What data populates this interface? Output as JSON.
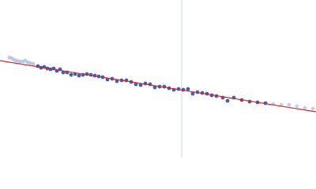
{
  "chart_data": {
    "type": "scatter",
    "xlim": [
      0,
      400
    ],
    "ylim": [
      0,
      200
    ],
    "vline": 230,
    "vline_color": "#c8d4e8",
    "series": [
      {
        "color": "#b9c8e4",
        "x": [
          12,
          15,
          18,
          21,
          25,
          29,
          32,
          35,
          38,
          42
        ],
        "values": [
          127,
          126,
          124,
          123,
          122,
          122,
          123,
          121,
          120,
          119
        ]
      },
      {
        "color": "#3d63b0",
        "x": [
          48,
          52,
          56,
          60,
          64,
          68,
          72,
          76,
          80,
          85,
          90,
          95,
          100,
          105,
          110,
          115,
          120,
          125,
          130,
          136,
          142,
          148,
          154,
          160,
          166,
          172,
          178,
          184,
          190,
          196,
          202,
          208,
          214,
          220,
          226,
          232,
          238,
          244,
          250,
          256,
          262,
          268,
          274,
          282,
          288,
          296,
          306,
          316,
          326,
          336
        ],
        "values": [
          116,
          114,
          115,
          113,
          112,
          113,
          110,
          112,
          108,
          108,
          105,
          106,
          104,
          105,
          106,
          105,
          104,
          103,
          102,
          99,
          100,
          97,
          98,
          98,
          96,
          93,
          92,
          94,
          93,
          89,
          90,
          90,
          88,
          86,
          87,
          86,
          87,
          81,
          83,
          82,
          81,
          79,
          78,
          76,
          72,
          76,
          73,
          71,
          70,
          69
        ]
      },
      {
        "color": "#c4d0e6",
        "x": [
          346,
          356,
          366,
          376,
          386,
          396
        ],
        "values": [
          68,
          67,
          67,
          65,
          63,
          62
        ]
      }
    ],
    "fit": {
      "color": "#d9232e",
      "x": [
        0,
        400
      ],
      "values": [
        123,
        58
      ]
    }
  }
}
